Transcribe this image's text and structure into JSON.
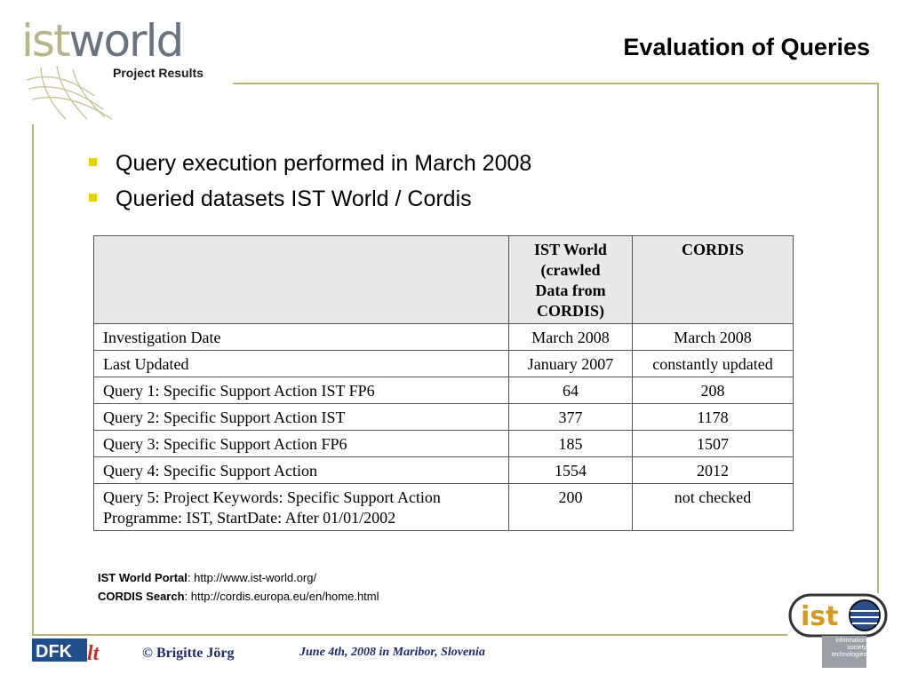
{
  "header": {
    "logo_ist": "ist",
    "logo_world": "world",
    "logo_subtitle": "Project Results",
    "title": "Evaluation of Queries"
  },
  "bullets": [
    "Query execution performed in March 2008",
    "Queried datasets IST World / Cordis"
  ],
  "table": {
    "columns": [
      "",
      "IST World (crawled Data from CORDIS)",
      "CORDIS"
    ],
    "col_ist_lines": [
      "IST World",
      "(crawled",
      "Data from",
      "CORDIS)"
    ],
    "rows": [
      [
        "Investigation Date",
        "March 2008",
        "March 2008"
      ],
      [
        "Last Updated",
        "January 2007",
        "constantly updated"
      ],
      [
        "Query 1: Specific Support Action IST FP6",
        "64",
        "208"
      ],
      [
        "Query 2: Specific Support Action IST",
        "377",
        "1178"
      ],
      [
        "Query 3: Specific Support Action FP6",
        "185",
        "1507"
      ],
      [
        "Query 4: Specific Support Action",
        "1554",
        "2012"
      ],
      [
        "Query 5: Project Keywords: Specific Support Action Programme: IST, StartDate: After 01/01/2002",
        "200",
        "not checked"
      ]
    ],
    "row5_lines": [
      "Query 5: Project Keywords: Specific Support Action",
      "Programme: IST, StartDate: After 01/01/2002"
    ]
  },
  "links": {
    "istworld_label": "IST World Portal",
    "istworld_url": ": http://www.ist-world.org/",
    "cordis_label": "CORDIS Search",
    "cordis_url": ": http://cordis.europa.eu/en/home.html"
  },
  "footer": {
    "copyright": "© Brigitte Jörg",
    "date": "June 4th, 2008 in Maribor, Slovenia",
    "dfki_logo": "DFKI lt",
    "ist_logo_text": "ist",
    "ist_logo_small": [
      "information",
      "society",
      "technologies"
    ]
  },
  "colors": {
    "frame": "#b7b27a",
    "bullet": "#e6d200",
    "footer_text": "#1f2a6b"
  }
}
